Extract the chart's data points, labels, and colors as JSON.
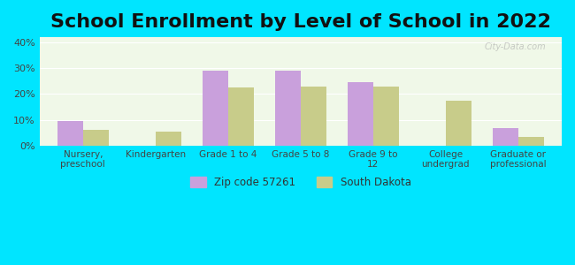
{
  "title": "School Enrollment by Level of School in 2022",
  "categories": [
    "Nursery,\npreschool",
    "Kindergarten",
    "Grade 1 to 4",
    "Grade 5 to 8",
    "Grade 9 to\n12",
    "College\nundergrad",
    "Graduate or\nprofessional"
  ],
  "zip_values": [
    9.5,
    0,
    29.0,
    29.0,
    24.5,
    0,
    6.8
  ],
  "sd_values": [
    6.0,
    5.5,
    22.5,
    23.0,
    23.0,
    17.5,
    3.5
  ],
  "zip_color": "#c9a0dc",
  "sd_color": "#c8cc8a",
  "background_outer": "#00e5ff",
  "background_inner": "#f0f8e8",
  "ylim": [
    0,
    42
  ],
  "yticks": [
    0,
    10,
    20,
    30,
    40
  ],
  "ytick_labels": [
    "0%",
    "10%",
    "20%",
    "30%",
    "40%"
  ],
  "legend_zip_label": "Zip code 57261",
  "legend_sd_label": "South Dakota",
  "title_fontsize": 16,
  "bar_width": 0.35,
  "watermark": "City-Data.com"
}
